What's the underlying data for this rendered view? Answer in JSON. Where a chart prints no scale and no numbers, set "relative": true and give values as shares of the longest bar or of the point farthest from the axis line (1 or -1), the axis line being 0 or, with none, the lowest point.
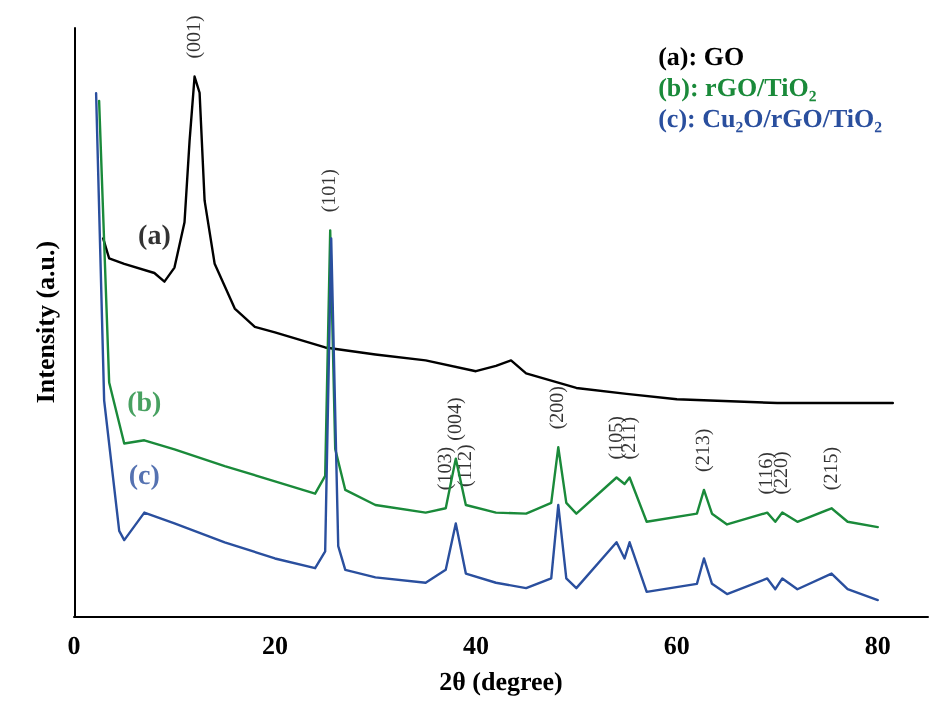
{
  "chart_data": {
    "type": "line",
    "relative": true,
    "xlabel": "2θ (degree)",
    "ylabel": "Intensity (a.u.)",
    "xlim": [
      0,
      85
    ],
    "xticks": [
      0,
      20,
      40,
      60,
      80
    ],
    "legend": "top right",
    "marker": "none",
    "line_style": "solid",
    "grid": false,
    "series": [
      {
        "name": "(a): GO",
        "color": "#000000",
        "x": [
          2.9,
          3.5,
          5,
          8,
          9,
          10,
          11,
          11.5,
          12,
          12.5,
          13,
          14,
          16,
          18,
          20,
          25,
          30,
          35,
          40,
          42,
          43.5,
          45,
          50,
          55,
          60,
          70,
          81.5
        ],
        "values": [
          0.7,
          0.663,
          0.653,
          0.636,
          0.62,
          0.646,
          0.73,
          0.88,
          1.0,
          0.97,
          0.77,
          0.653,
          0.57,
          0.536,
          0.526,
          0.498,
          0.485,
          0.474,
          0.454,
          0.464,
          0.474,
          0.45,
          0.423,
          0.412,
          0.402,
          0.395,
          0.395
        ]
      },
      {
        "name": "(b): rGO/TiO₂",
        "color": "#1a8a3a",
        "x": [
          2.5,
          3.5,
          5,
          7,
          10,
          15,
          20,
          24,
          25,
          25.5,
          26,
          27,
          30,
          35,
          37,
          38,
          39,
          42,
          45,
          47.5,
          48.2,
          49,
          50,
          54,
          54.8,
          55.3,
          57,
          62,
          62.7,
          63.5,
          65,
          69,
          69.8,
          70.5,
          72,
          75.4,
          77,
          80
        ],
        "values": [
          0.955,
          0.433,
          0.32,
          0.326,
          0.309,
          0.278,
          0.25,
          0.227,
          0.26,
          0.715,
          0.31,
          0.234,
          0.206,
          0.192,
          0.2,
          0.292,
          0.206,
          0.192,
          0.19,
          0.21,
          0.313,
          0.21,
          0.19,
          0.257,
          0.245,
          0.257,
          0.175,
          0.19,
          0.234,
          0.19,
          0.17,
          0.192,
          0.175,
          0.192,
          0.175,
          0.2,
          0.175,
          0.165
        ]
      },
      {
        "name": "(c): Cu₂O/rGO/TiO₂",
        "color": "#2a4f9e",
        "x": [
          2.2,
          3,
          4.5,
          5,
          7,
          10,
          15,
          20,
          24,
          25,
          25.6,
          26.3,
          27,
          30,
          35,
          37,
          38,
          39,
          42,
          45,
          47.5,
          48.2,
          49,
          50,
          54,
          54.8,
          55.3,
          57,
          62,
          62.7,
          63.5,
          65,
          69,
          69.8,
          70.5,
          72,
          75.4,
          77,
          80
        ],
        "values": [
          0.969,
          0.4,
          0.158,
          0.141,
          0.192,
          0.172,
          0.137,
          0.107,
          0.089,
          0.12,
          0.7,
          0.13,
          0.086,
          0.072,
          0.062,
          0.086,
          0.172,
          0.079,
          0.062,
          0.052,
          0.07,
          0.206,
          0.07,
          0.052,
          0.137,
          0.107,
          0.137,
          0.045,
          0.06,
          0.107,
          0.06,
          0.041,
          0.07,
          0.05,
          0.07,
          0.05,
          0.079,
          0.05,
          0.03
        ]
      }
    ],
    "annotations": [
      "(a)",
      "(b)",
      "(c)",
      {
        "text": "(001)",
        "x": 12,
        "y": 1.0
      },
      {
        "text": "(101)",
        "x": 25.5,
        "y": 0.715
      },
      {
        "text": "(103)",
        "x": 37,
        "y": 0.2
      },
      {
        "text": "(004)",
        "x": 38,
        "y": 0.292
      },
      {
        "text": "(112)",
        "x": 39,
        "y": 0.206
      },
      {
        "text": "(200)",
        "x": 48.2,
        "y": 0.313
      },
      {
        "text": "(105)",
        "x": 54,
        "y": 0.257
      },
      {
        "text": "(211)",
        "x": 55.3,
        "y": 0.257
      },
      {
        "text": "(213)",
        "x": 62.7,
        "y": 0.234
      },
      {
        "text": "(116)",
        "x": 69,
        "y": 0.192
      },
      {
        "text": "(220)",
        "x": 70.5,
        "y": 0.192
      },
      {
        "text": "(215)",
        "x": 75.4,
        "y": 0.2
      }
    ]
  }
}
